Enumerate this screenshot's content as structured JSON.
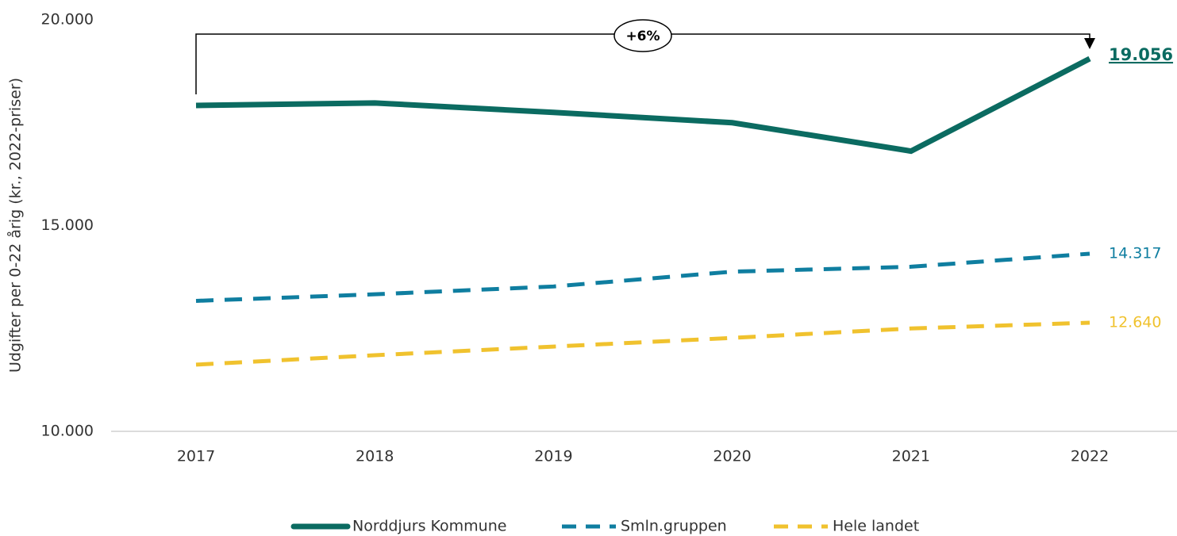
{
  "chart_data": {
    "type": "line",
    "y_label": "Udgifter per 0-22 årig (kr., 2022-priser)",
    "categories": [
      "2017",
      "2018",
      "2019",
      "2020",
      "2021",
      "2022"
    ],
    "series": [
      {
        "name": "Norddjurs Kommune",
        "color": "#0b6b61",
        "dash": false,
        "values": [
          17920,
          17980,
          17750,
          17500,
          16810,
          19056
        ],
        "value_labels": [
          null,
          null,
          null,
          null,
          null,
          "19.056"
        ]
      },
      {
        "name": "Smln.gruppen",
        "color": "#0f7ea0",
        "dash": true,
        "values": [
          13170,
          13330,
          13520,
          13880,
          14000,
          14317
        ],
        "value_labels": [
          null,
          null,
          null,
          null,
          null,
          "14.317"
        ]
      },
      {
        "name": "Hele landet",
        "color": "#f0c22e",
        "dash": true,
        "values": [
          11620,
          11850,
          12060,
          12270,
          12500,
          12640
        ],
        "value_labels": [
          null,
          null,
          null,
          null,
          null,
          "12.640"
        ]
      }
    ],
    "annotation": "+6%",
    "ylim": [
      10000,
      20000
    ],
    "yticks": [
      {
        "value": 10000,
        "label": "10.000"
      },
      {
        "value": 15000,
        "label": "15.000"
      },
      {
        "value": 20000,
        "label": "20.000"
      }
    ],
    "grid": false,
    "legend": "bottom"
  }
}
